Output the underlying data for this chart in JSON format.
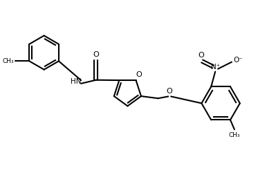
{
  "background_color": "#ffffff",
  "line_color": "#000000",
  "line_width": 1.5,
  "text_color": "#000000",
  "figsize": [
    3.99,
    2.69
  ],
  "dpi": 100,
  "xlim": [
    0,
    10
  ],
  "ylim": [
    0,
    6.75
  ]
}
